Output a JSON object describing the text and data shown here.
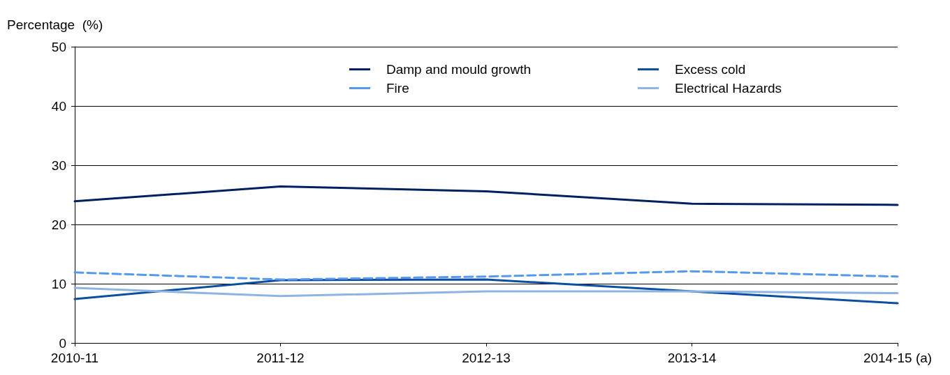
{
  "chart_data": {
    "type": "line",
    "ylabel": "Percentage  (%)",
    "categories": [
      "2010-11",
      "2011-12",
      "2012-13",
      "2013-14",
      "2014-15 (a)"
    ],
    "series": [
      {
        "name": "Damp and mould growth",
        "color": "#002060",
        "values": [
          23.9,
          26.4,
          25.6,
          23.5,
          23.3
        ]
      },
      {
        "name": "Excess cold",
        "color": "#0b4ea2",
        "values": [
          7.4,
          10.6,
          10.7,
          8.7,
          6.7
        ]
      },
      {
        "name": "Fire",
        "color": "#5599ee",
        "line_style": "dashed",
        "values": [
          11.9,
          10.7,
          11.2,
          12.1,
          11.2
        ]
      },
      {
        "name": "Electrical Hazards",
        "color": "#8db4e2",
        "values": [
          9.3,
          7.9,
          8.7,
          8.7,
          8.4
        ]
      }
    ],
    "ylim": [
      0,
      50
    ],
    "yticks": [
      0,
      10,
      20,
      30,
      40,
      50
    ],
    "grid": "y",
    "legend": "top right",
    "marker": "none",
    "line_style": "solid"
  }
}
